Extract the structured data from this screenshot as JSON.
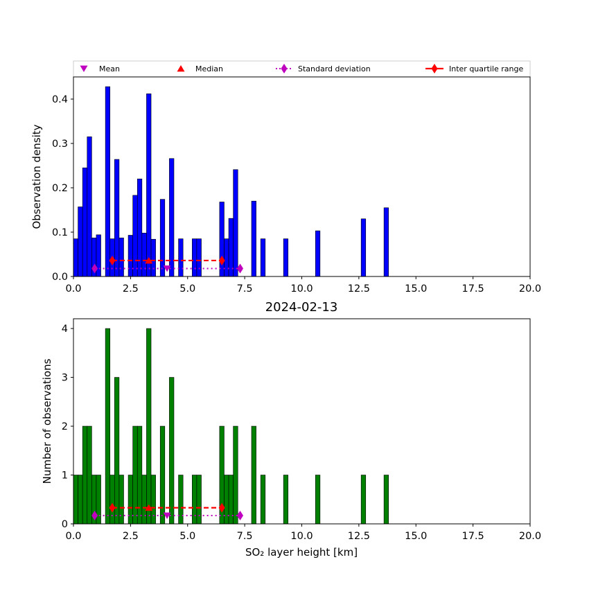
{
  "figure": {
    "title": "2024-02-13",
    "colors": {
      "density_bars": "#0000ff",
      "count_bars": "#008000",
      "mean": "#bf00bf",
      "median": "#ff0000",
      "std": "#bf00bf",
      "iqr": "#ff0000",
      "edge": "#000000"
    }
  },
  "legend": {
    "placement": "above top panel",
    "entries": [
      {
        "label": "Mean",
        "marker": "triangle-down",
        "color": "#bf00bf"
      },
      {
        "label": "Median",
        "marker": "triangle-up",
        "color": "#ff0000"
      },
      {
        "label": "Standard deviation",
        "marker": "diamond",
        "line": "dotted",
        "color": "#bf00bf"
      },
      {
        "label": "Inter quartile range",
        "marker": "diamond",
        "line": "dashed",
        "color": "#ff0000"
      }
    ]
  },
  "chart_data": [
    {
      "type": "bar",
      "panel": "top",
      "ylabel": "Observation density",
      "xlabel": "",
      "xlim": [
        0,
        20
      ],
      "ylim": [
        0,
        0.45
      ],
      "xticks": [
        "0.0",
        "2.5",
        "5.0",
        "7.5",
        "10.0",
        "12.5",
        "15.0",
        "17.5",
        "20.0"
      ],
      "xtick_values": [
        0,
        2.5,
        5,
        7.5,
        10,
        12.5,
        15,
        17.5,
        20
      ],
      "yticks": [
        "0.0",
        "0.1",
        "0.2",
        "0.3",
        "0.4"
      ],
      "ytick_values": [
        0,
        0.1,
        0.2,
        0.3,
        0.4
      ],
      "bin_width": 0.2,
      "bins": [
        {
          "x": 0.0,
          "value": 0.085
        },
        {
          "x": 0.2,
          "value": 0.157
        },
        {
          "x": 0.4,
          "value": 0.245
        },
        {
          "x": 0.6,
          "value": 0.315
        },
        {
          "x": 0.8,
          "value": 0.087
        },
        {
          "x": 1.0,
          "value": 0.094
        },
        {
          "x": 1.4,
          "value": 0.428
        },
        {
          "x": 1.6,
          "value": 0.085
        },
        {
          "x": 1.8,
          "value": 0.264
        },
        {
          "x": 2.0,
          "value": 0.087
        },
        {
          "x": 2.4,
          "value": 0.093
        },
        {
          "x": 2.6,
          "value": 0.183
        },
        {
          "x": 2.8,
          "value": 0.22
        },
        {
          "x": 3.0,
          "value": 0.098
        },
        {
          "x": 3.2,
          "value": 0.412
        },
        {
          "x": 3.4,
          "value": 0.084
        },
        {
          "x": 3.8,
          "value": 0.174
        },
        {
          "x": 4.2,
          "value": 0.266
        },
        {
          "x": 4.6,
          "value": 0.085
        },
        {
          "x": 5.2,
          "value": 0.085
        },
        {
          "x": 5.4,
          "value": 0.085
        },
        {
          "x": 6.4,
          "value": 0.168
        },
        {
          "x": 6.6,
          "value": 0.085
        },
        {
          "x": 6.8,
          "value": 0.131
        },
        {
          "x": 7.0,
          "value": 0.241
        },
        {
          "x": 7.8,
          "value": 0.17
        },
        {
          "x": 8.2,
          "value": 0.085
        },
        {
          "x": 9.2,
          "value": 0.085
        },
        {
          "x": 10.6,
          "value": 0.103
        },
        {
          "x": 12.6,
          "value": 0.13
        },
        {
          "x": 13.6,
          "value": 0.155
        }
      ],
      "stats": {
        "mean": {
          "x": 4.1,
          "y": 0.018
        },
        "median": {
          "x": 3.3,
          "y": 0.036
        },
        "std": {
          "x": [
            0.93,
            7.3
          ],
          "y": 0.018
        },
        "iqr": {
          "x": [
            1.7,
            6.5
          ],
          "y": 0.036
        }
      }
    },
    {
      "type": "bar",
      "panel": "bottom",
      "title": "2024-02-13",
      "ylabel": "Number of observations",
      "xlabel": "SO₂ layer height [km]",
      "xlim": [
        0,
        20
      ],
      "ylim": [
        0,
        4.2
      ],
      "xticks": [
        "0.0",
        "2.5",
        "5.0",
        "7.5",
        "10.0",
        "12.5",
        "15.0",
        "17.5",
        "20.0"
      ],
      "xtick_values": [
        0,
        2.5,
        5,
        7.5,
        10,
        12.5,
        15,
        17.5,
        20
      ],
      "yticks": [
        "0",
        "1",
        "2",
        "3",
        "4"
      ],
      "ytick_values": [
        0,
        1,
        2,
        3,
        4
      ],
      "bin_width": 0.2,
      "bins": [
        {
          "x": 0.0,
          "value": 1
        },
        {
          "x": 0.2,
          "value": 1
        },
        {
          "x": 0.4,
          "value": 2
        },
        {
          "x": 0.6,
          "value": 2
        },
        {
          "x": 0.8,
          "value": 1
        },
        {
          "x": 1.0,
          "value": 1
        },
        {
          "x": 1.4,
          "value": 4
        },
        {
          "x": 1.6,
          "value": 1
        },
        {
          "x": 1.8,
          "value": 3
        },
        {
          "x": 2.0,
          "value": 1
        },
        {
          "x": 2.4,
          "value": 1
        },
        {
          "x": 2.6,
          "value": 2
        },
        {
          "x": 2.8,
          "value": 2
        },
        {
          "x": 3.0,
          "value": 1
        },
        {
          "x": 3.2,
          "value": 4
        },
        {
          "x": 3.4,
          "value": 1
        },
        {
          "x": 3.8,
          "value": 2
        },
        {
          "x": 4.2,
          "value": 3
        },
        {
          "x": 4.6,
          "value": 1
        },
        {
          "x": 5.2,
          "value": 1
        },
        {
          "x": 5.4,
          "value": 1
        },
        {
          "x": 6.4,
          "value": 2
        },
        {
          "x": 6.6,
          "value": 1
        },
        {
          "x": 6.8,
          "value": 1
        },
        {
          "x": 7.0,
          "value": 2
        },
        {
          "x": 7.8,
          "value": 2
        },
        {
          "x": 8.2,
          "value": 1
        },
        {
          "x": 9.2,
          "value": 1
        },
        {
          "x": 10.6,
          "value": 1
        },
        {
          "x": 12.6,
          "value": 1
        },
        {
          "x": 13.6,
          "value": 1
        }
      ],
      "stats": {
        "mean": {
          "x": 4.1,
          "y": 0.17
        },
        "median": {
          "x": 3.3,
          "y": 0.33
        },
        "std": {
          "x": [
            0.93,
            7.3
          ],
          "y": 0.17
        },
        "iqr": {
          "x": [
            1.7,
            6.5
          ],
          "y": 0.33
        }
      }
    }
  ]
}
